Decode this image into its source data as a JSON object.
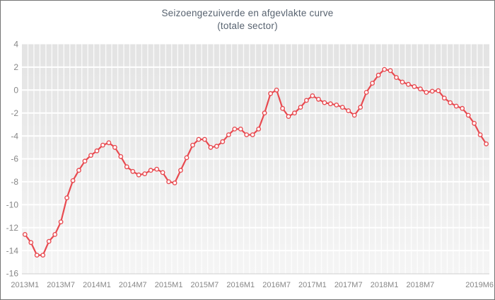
{
  "window": {
    "background": "#ffffff",
    "border_color": "#757575"
  },
  "chart_data": {
    "type": "line",
    "title": "Seizoengezuiverde en afgevlakte curve",
    "subtitle": "(totale sector)",
    "x_start": "2013M1",
    "x_end": "2019M6",
    "x_unit": "month",
    "n_points": 78,
    "ylim": [
      -16,
      4
    ],
    "y_ticks": [
      4,
      2,
      0,
      -2,
      -4,
      -6,
      -8,
      -10,
      -12,
      -14,
      -16
    ],
    "x_ticks": [
      {
        "label": "2013M1",
        "month_index": 0
      },
      {
        "label": "2013M7",
        "month_index": 6
      },
      {
        "label": "2014M1",
        "month_index": 12
      },
      {
        "label": "2014M7",
        "month_index": 18
      },
      {
        "label": "2015M1",
        "month_index": 24
      },
      {
        "label": "2015M7",
        "month_index": 30
      },
      {
        "label": "2016M1",
        "month_index": 36
      },
      {
        "label": "2016M7",
        "month_index": 42
      },
      {
        "label": "2017M1",
        "month_index": 48
      },
      {
        "label": "2017M7",
        "month_index": 54
      },
      {
        "label": "2018M1",
        "month_index": 60
      },
      {
        "label": "2018M7",
        "month_index": 66
      },
      {
        "label": "2019M6",
        "month_index": 77
      }
    ],
    "series": [
      {
        "name": "Seizoengezuiverde en afgevlakte curve (totale sector)",
        "values": [
          -12.6,
          -13.3,
          -14.4,
          -14.4,
          -13.2,
          -12.6,
          -11.5,
          -9.4,
          -7.9,
          -7.0,
          -6.2,
          -5.7,
          -5.3,
          -4.8,
          -4.6,
          -5.0,
          -5.8,
          -6.7,
          -7.1,
          -7.4,
          -7.3,
          -7.0,
          -6.9,
          -7.2,
          -8.0,
          -8.1,
          -7.0,
          -5.9,
          -4.8,
          -4.3,
          -4.3,
          -5.0,
          -4.9,
          -4.5,
          -3.9,
          -3.4,
          -3.4,
          -3.9,
          -3.9,
          -3.4,
          -2.0,
          -0.3,
          0.0,
          -1.6,
          -2.3,
          -2.0,
          -1.5,
          -0.9,
          -0.5,
          -0.8,
          -1.1,
          -1.2,
          -1.3,
          -1.5,
          -1.8,
          -2.2,
          -1.5,
          -0.2,
          0.6,
          1.3,
          1.8,
          1.7,
          1.1,
          0.7,
          0.5,
          0.3,
          0.1,
          -0.2,
          -0.1,
          -0.05,
          -0.7,
          -1.1,
          -1.4,
          -1.6,
          -2.2,
          -2.9,
          -3.9,
          -4.7
        ]
      }
    ],
    "grid": "white horizontal gridlines every 2 units and white vertical monthly stripes on gray gradient panel",
    "legend_position": "none",
    "colors": {
      "line": "#e84a50",
      "marker_fill": "#ffffff",
      "panel_top": "#e3e3e3",
      "panel_bottom": "#f5f5f5",
      "gridline": "#ffffff",
      "axis_line": "#cfcfcf",
      "tick_label": "#878787",
      "title": "#586370"
    }
  }
}
